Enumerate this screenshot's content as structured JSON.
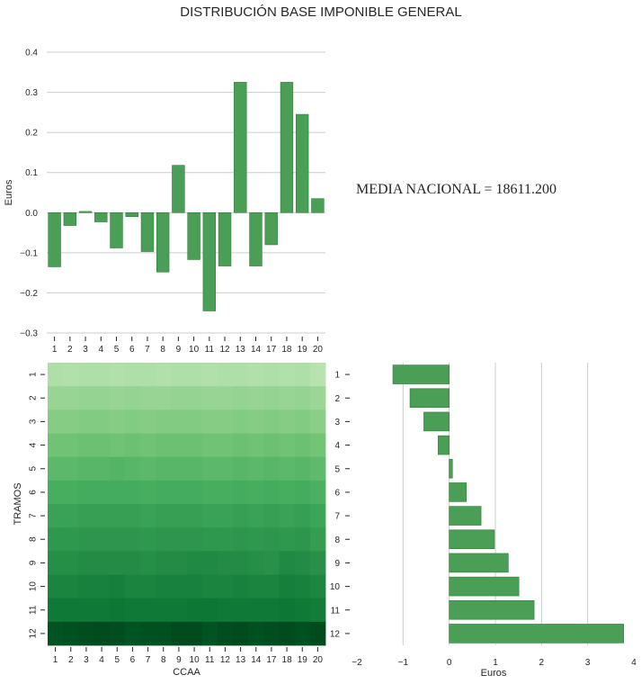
{
  "figure": {
    "suptitle": "DISTRIBUCIÓN BASE IMPONIBLE GENERAL",
    "annotation": "MEDIA NACIONAL = 18611.200"
  },
  "colors": {
    "bar_fill": "#4a9e55",
    "bar_edge": "#2e7d3a",
    "grid": "#cccccc"
  },
  "chart_data": [
    {
      "type": "bar",
      "categories": [
        "1",
        "2",
        "3",
        "4",
        "5",
        "6",
        "7",
        "8",
        "9",
        "10",
        "11",
        "12",
        "13",
        "14",
        "17",
        "18",
        "19",
        "20"
      ],
      "values": [
        -0.135,
        -0.032,
        0.003,
        -0.023,
        -0.088,
        -0.01,
        -0.097,
        -0.148,
        0.118,
        -0.117,
        -0.245,
        -0.133,
        0.325,
        -0.133,
        -0.08,
        0.325,
        0.245,
        0.035
      ],
      "xlabel": "",
      "ylabel": "Euros",
      "ylim": [
        -0.3,
        0.4
      ],
      "yticks": [
        "−0.3",
        "−0.2",
        "−0.1",
        "0.0",
        "0.1",
        "0.2",
        "0.3",
        "0.4"
      ],
      "grid": true
    },
    {
      "type": "heatmap",
      "x_categories": [
        "1",
        "2",
        "3",
        "4",
        "5",
        "6",
        "7",
        "8",
        "9",
        "10",
        "11",
        "12",
        "13",
        "14",
        "17",
        "18",
        "19",
        "20"
      ],
      "y_categories": [
        "1",
        "2",
        "3",
        "4",
        "5",
        "6",
        "7",
        "8",
        "9",
        "10",
        "11",
        "12"
      ],
      "xlabel": "CCAA",
      "ylabel": "TRAMOS",
      "colormap": "Greens",
      "values": [
        [
          0.33,
          0.32,
          0.33,
          0.33,
          0.32,
          0.33,
          0.33,
          0.32,
          0.33,
          0.33,
          0.32,
          0.33,
          0.33,
          0.32,
          0.33,
          0.32,
          0.33,
          0.3
        ],
        [
          0.4,
          0.4,
          0.41,
          0.41,
          0.4,
          0.41,
          0.4,
          0.4,
          0.41,
          0.41,
          0.4,
          0.4,
          0.41,
          0.4,
          0.41,
          0.4,
          0.41,
          0.39
        ],
        [
          0.45,
          0.45,
          0.46,
          0.46,
          0.45,
          0.46,
          0.45,
          0.46,
          0.46,
          0.46,
          0.45,
          0.45,
          0.46,
          0.45,
          0.46,
          0.45,
          0.46,
          0.44
        ],
        [
          0.51,
          0.51,
          0.52,
          0.52,
          0.51,
          0.52,
          0.51,
          0.52,
          0.52,
          0.52,
          0.51,
          0.51,
          0.52,
          0.51,
          0.52,
          0.51,
          0.52,
          0.5
        ],
        [
          0.56,
          0.56,
          0.57,
          0.57,
          0.58,
          0.57,
          0.56,
          0.57,
          0.57,
          0.57,
          0.56,
          0.56,
          0.57,
          0.56,
          0.57,
          0.56,
          0.57,
          0.55
        ],
        [
          0.61,
          0.61,
          0.62,
          0.62,
          0.62,
          0.62,
          0.61,
          0.62,
          0.62,
          0.62,
          0.61,
          0.61,
          0.62,
          0.61,
          0.62,
          0.61,
          0.62,
          0.6
        ],
        [
          0.66,
          0.66,
          0.67,
          0.67,
          0.67,
          0.67,
          0.66,
          0.67,
          0.67,
          0.67,
          0.66,
          0.66,
          0.67,
          0.66,
          0.67,
          0.66,
          0.67,
          0.65
        ],
        [
          0.7,
          0.7,
          0.71,
          0.71,
          0.71,
          0.71,
          0.7,
          0.71,
          0.71,
          0.71,
          0.7,
          0.7,
          0.71,
          0.7,
          0.71,
          0.7,
          0.71,
          0.68
        ],
        [
          0.74,
          0.74,
          0.75,
          0.75,
          0.75,
          0.75,
          0.74,
          0.75,
          0.75,
          0.76,
          0.76,
          0.75,
          0.75,
          0.74,
          0.73,
          0.76,
          0.75,
          0.73
        ],
        [
          0.78,
          0.78,
          0.79,
          0.79,
          0.8,
          0.78,
          0.78,
          0.79,
          0.79,
          0.79,
          0.78,
          0.78,
          0.79,
          0.78,
          0.78,
          0.8,
          0.79,
          0.77
        ],
        [
          0.82,
          0.82,
          0.82,
          0.82,
          0.83,
          0.82,
          0.82,
          0.82,
          0.82,
          0.83,
          0.83,
          0.82,
          0.82,
          0.82,
          0.82,
          0.83,
          0.82,
          0.81
        ],
        [
          0.95,
          0.96,
          0.97,
          0.98,
          0.97,
          0.95,
          0.96,
          0.96,
          0.98,
          0.98,
          0.95,
          0.97,
          0.98,
          0.96,
          0.97,
          0.98,
          0.96,
          0.98
        ]
      ]
    },
    {
      "type": "bar",
      "orientation": "horizontal",
      "categories": [
        "1",
        "2",
        "3",
        "4",
        "5",
        "6",
        "7",
        "8",
        "9",
        "10",
        "11",
        "12"
      ],
      "values": [
        -1.22,
        -0.85,
        -0.55,
        -0.24,
        0.07,
        0.37,
        0.69,
        0.98,
        1.28,
        1.51,
        1.84,
        3.78
      ],
      "xlabel": "Euros",
      "ylabel": "",
      "xlim": [
        -2,
        4
      ],
      "xticks": [
        "−2",
        "−1",
        "0",
        "1",
        "2",
        "3",
        "4"
      ],
      "grid": true
    }
  ]
}
